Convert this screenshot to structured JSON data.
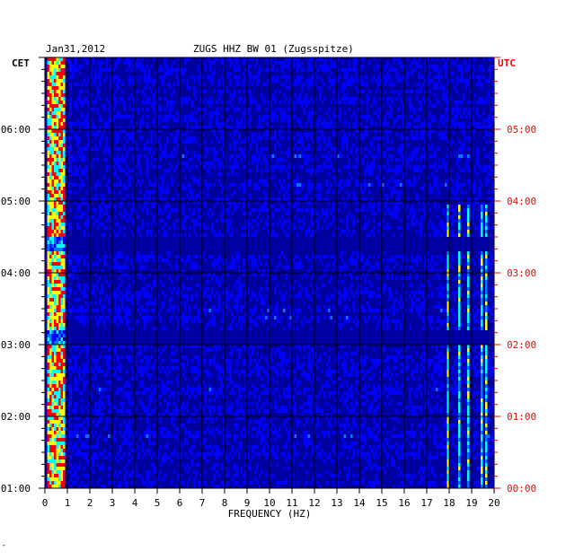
{
  "header": {
    "date": "Jan31,2012",
    "station": "ZUGS HHZ BW 01 (Zugsspitze)",
    "left_zone": "CET",
    "right_zone": "UTC"
  },
  "footer": {
    "mark": "″"
  },
  "colors": {
    "background": "#0000a0",
    "utc_labels": "#ff0000",
    "grid": "#000000"
  },
  "chart_data": {
    "type": "heatmap",
    "title": "ZUGS HHZ BW 01 (Zugsspitze)",
    "xlabel": "FREQUENCY (HZ)",
    "ylabel_left": "CET",
    "ylabel_right": "UTC",
    "xlim": [
      0,
      20
    ],
    "x_ticks": [
      "0",
      "1",
      "2",
      "3",
      "4",
      "5",
      "6",
      "7",
      "8",
      "9",
      "10",
      "11",
      "12",
      "13",
      "14",
      "15",
      "16",
      "17",
      "18",
      "19",
      "20"
    ],
    "time_range_utc": [
      "00:00",
      "06:00"
    ],
    "y_ticks_left": [
      "06:00",
      "05:00",
      "04:00",
      "03:00",
      "02:00",
      "01:00"
    ],
    "y_ticks_right": [
      "05:00",
      "04:00",
      "03:00",
      "02:00",
      "01:00",
      "00:00"
    ],
    "color_scale": [
      "#00008c",
      "#0000ff",
      "#0078ff",
      "#00ffff",
      "#ffff00",
      "#ff0000"
    ],
    "grid": true,
    "features": [
      {
        "desc": "high energy band",
        "freq_range_hz": [
          0.1,
          0.8
        ],
        "level": "high"
      },
      {
        "desc": "spectral lines",
        "freq_hz": [
          17.9,
          18.4,
          18.8,
          19.4,
          19.6
        ],
        "level": "medium"
      },
      {
        "desc": "quiet gap",
        "time_utc": "03:25",
        "level": "low"
      },
      {
        "desc": "quiet gap",
        "time_utc": "02:07",
        "level": "low"
      }
    ]
  }
}
